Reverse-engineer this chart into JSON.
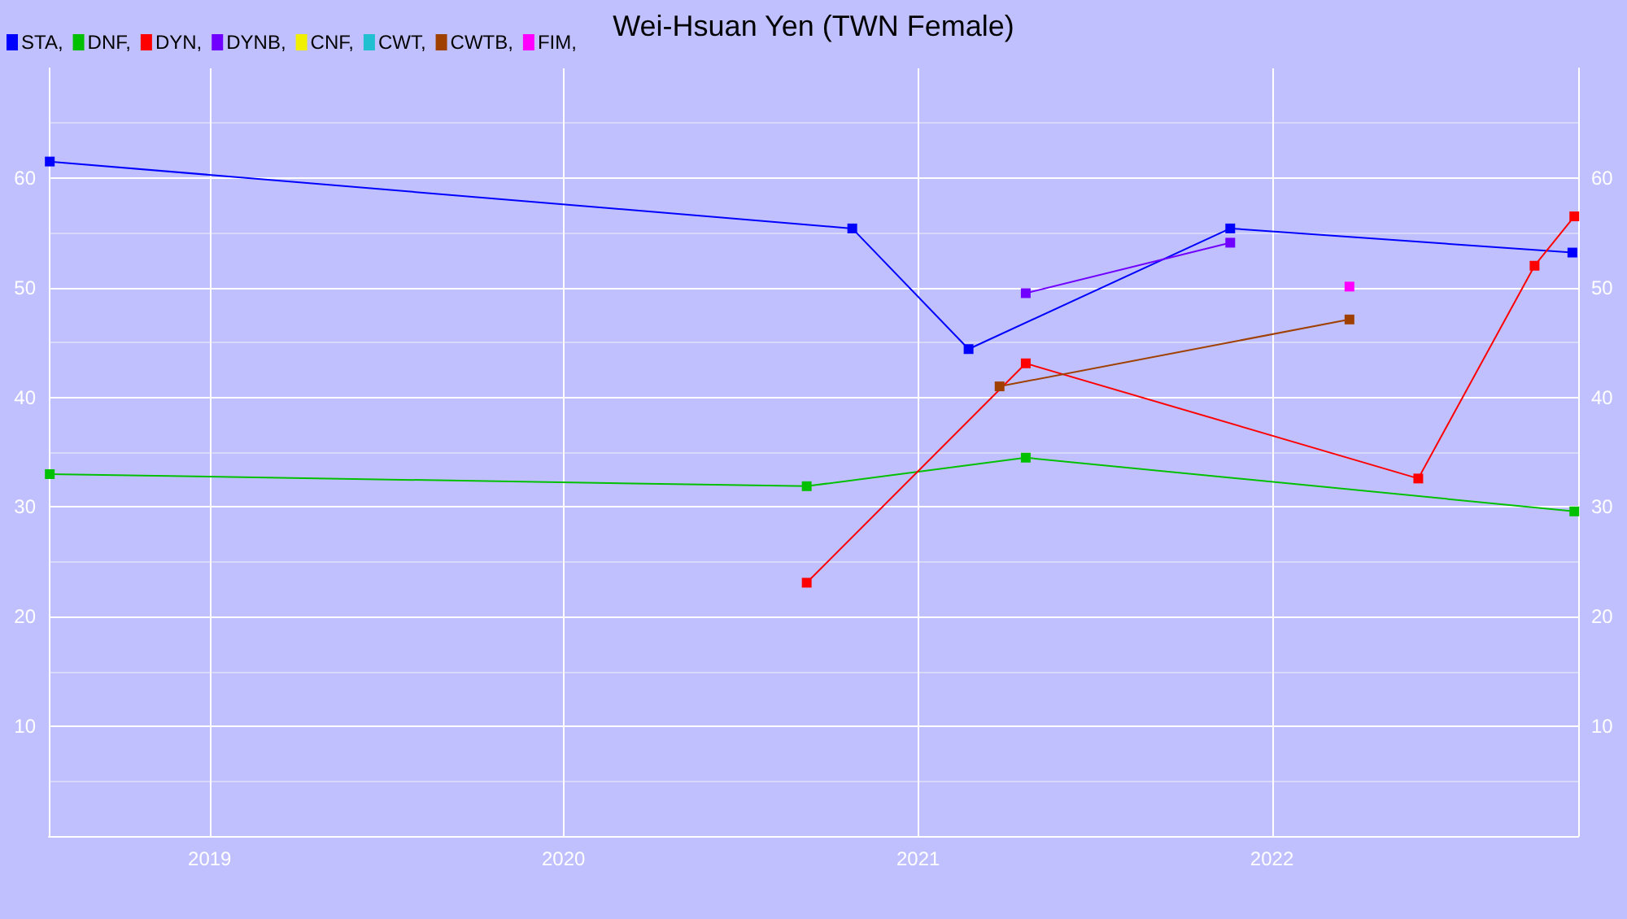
{
  "chart_data": {
    "type": "line",
    "title": "Wei-Hsuan Yen (TWN Female)",
    "marker": "square",
    "grid": true,
    "legend": "top left",
    "xlim": [
      "2018-07-19",
      "2022-11-13"
    ],
    "xticks": [
      "2019",
      "2020",
      "2021",
      "2022"
    ],
    "ylim": [
      0,
      70
    ],
    "yticks": [
      10,
      20,
      30,
      40,
      50,
      60
    ],
    "y2lim": [
      0,
      70
    ],
    "y2ticks": [
      10,
      20,
      30,
      40,
      50,
      60
    ],
    "series": [
      {
        "name": "STA,",
        "color": "#0000ff",
        "x": [
          "2018-07-20",
          "2020-10-25",
          "2021-02-22",
          "2021-11-19",
          "2022-11-07"
        ],
        "values": [
          61.5,
          55.4,
          44.4,
          55.4,
          53.2
        ]
      },
      {
        "name": "DNF,",
        "color": "#00c000",
        "x": [
          "2018-07-20",
          "2020-09-08",
          "2021-04-22",
          "2022-11-09"
        ],
        "values": [
          33.0,
          31.9,
          34.5,
          29.6
        ]
      },
      {
        "name": "DYN,",
        "color": "#ff0000",
        "x": [
          "2020-09-08",
          "2021-04-22",
          "2022-06-01",
          "2022-09-29",
          "2022-11-09"
        ],
        "values": [
          23.1,
          43.1,
          32.6,
          52.0,
          56.5
        ]
      },
      {
        "name": "DYNB,",
        "color": "#7000ff",
        "x": [
          "2021-04-22",
          "2021-11-19"
        ],
        "values": [
          49.5,
          54.1
        ]
      },
      {
        "name": "CNF,",
        "color": "#f0f000"
      },
      {
        "name": "CWT,",
        "color": "#20c0d0"
      },
      {
        "name": "CWTB,",
        "color": "#a04000",
        "x": [
          "2021-03-26",
          "2022-03-22"
        ],
        "values": [
          41.0,
          47.1
        ]
      },
      {
        "name": "FIM,",
        "color": "#ff00ff",
        "x": [
          "2022-03-22"
        ],
        "values": [
          50.1
        ]
      }
    ]
  }
}
